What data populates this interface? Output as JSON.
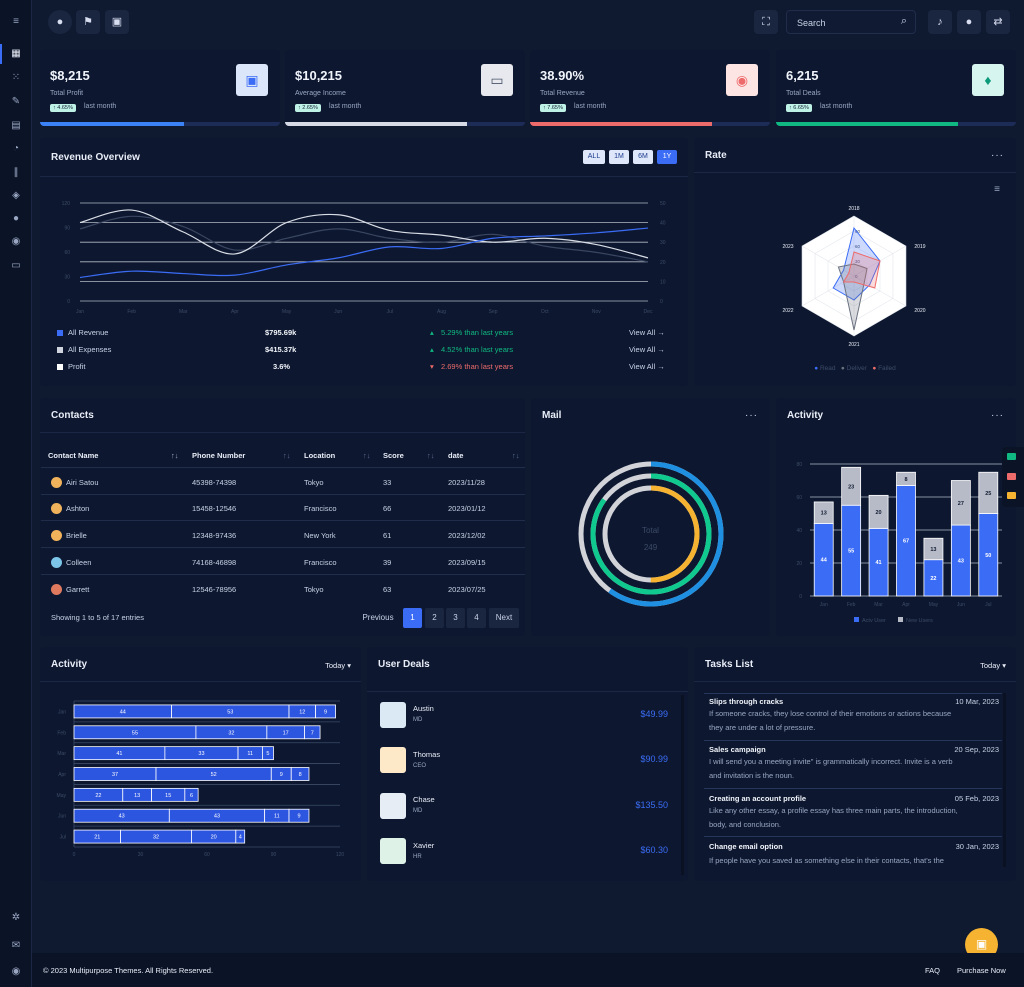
{
  "header": {
    "search_placeholder": "Search"
  },
  "stats": [
    {
      "value": "$8,215",
      "label": "Total Profit",
      "change": "↑ 4.65%",
      "period": "last month",
      "progress": 0.6,
      "bar_color": "#3b82f6"
    },
    {
      "value": "$10,215",
      "label": "Average Income",
      "change": "↑ 2.65%",
      "period": "last month",
      "progress": 0.76,
      "bar_color": "#d7dbe6"
    },
    {
      "value": "38.90%",
      "label": "Total Revenue",
      "change": "↑ 7.65%",
      "period": "last month",
      "progress": 0.76,
      "bar_color": "#ee6b6b"
    },
    {
      "value": "6,215",
      "label": "Total Deals",
      "change": "↑ 6.65%",
      "period": "last month",
      "progress": 0.76,
      "bar_color": "#10b981"
    }
  ],
  "revenue": {
    "title": "Revenue Overview",
    "ranges": [
      "ALL",
      "1M",
      "6M",
      "1Y"
    ],
    "active_range": "1Y",
    "legend": [
      {
        "name": "All Revenue",
        "amount": "$795.69k",
        "change": "5.29% than last years",
        "dir": "up",
        "link": "View All →",
        "color": "#3b6cf6"
      },
      {
        "name": "All Expenses",
        "amount": "$415.37k",
        "change": "4.52% than last years",
        "dir": "up",
        "link": "View All →",
        "color": "#cfd4df"
      },
      {
        "name": "Profit",
        "amount": "3.6%",
        "change": "2.69% than last years",
        "dir": "down",
        "link": "View All →",
        "color": "#ffffff"
      }
    ]
  },
  "rate": {
    "title": "Rate",
    "legend": [
      "Read",
      "Deliver",
      "Failed"
    ]
  },
  "contacts": {
    "title": "Contacts",
    "columns": [
      "Contact Name",
      "Phone Number",
      "Location",
      "Score",
      "date"
    ],
    "rows": [
      {
        "name": "Airi Satou",
        "phone": "45398-74398",
        "location": "Tokyo",
        "score": "33",
        "date": "2023/11/28"
      },
      {
        "name": "Ashton",
        "phone": "15458-12546",
        "location": "Francisco",
        "score": "66",
        "date": "2023/01/12"
      },
      {
        "name": "Brielle",
        "phone": "12348-97436",
        "location": "New York",
        "score": "61",
        "date": "2023/12/02"
      },
      {
        "name": "Colleen",
        "phone": "74168-46898",
        "location": "Francisco",
        "score": "39",
        "date": "2023/09/15"
      },
      {
        "name": "Garrett",
        "phone": "12546-78956",
        "location": "Tokyo",
        "score": "63",
        "date": "2023/07/25"
      }
    ],
    "footer": "Showing 1 to 5 of 17 entries",
    "pagination": [
      "Previous",
      "1",
      "2",
      "3",
      "4",
      "Next"
    ]
  },
  "mail": {
    "title": "Mail",
    "center_label": "Total",
    "center_value": "249"
  },
  "activity_top": {
    "title": "Activity"
  },
  "activity_bottom": {
    "title": "Activity",
    "filter": "Today ▾"
  },
  "deals": {
    "title": "User Deals",
    "items": [
      {
        "name": "Austin",
        "role": "MD",
        "amount": "$49.99"
      },
      {
        "name": "Thomas",
        "role": "CEO",
        "amount": "$90.99"
      },
      {
        "name": "Chase",
        "role": "MD",
        "amount": "$135.50"
      },
      {
        "name": "Xavier",
        "role": "HR",
        "amount": "$60.30"
      }
    ]
  },
  "tasks": {
    "title": "Tasks List",
    "filter": "Today ▾",
    "items": [
      {
        "title": "Slips through cracks",
        "date": "10 Mar, 2023",
        "body": "If someone cracks, they lose control of their emotions or actions because they are under a lot of pressure."
      },
      {
        "title": "Sales campaign",
        "date": "20 Sep, 2023",
        "body": "I will send you a meeting invite\" is grammatically incorrect. Invite is a verb and invitation is the noun."
      },
      {
        "title": "Creating an account profile",
        "date": "05 Feb, 2023",
        "body": "Like any other essay, a profile essay has three main parts, the introduction, body, and conclusion."
      },
      {
        "title": "Change email option",
        "date": "30 Jan, 2023",
        "body": "If people have you saved as something else in their contacts, that's the"
      }
    ]
  },
  "footer": {
    "copyright": "© 2023 Multipurpose Themes. All Rights Reserved.",
    "links": [
      "FAQ",
      "Purchase Now"
    ]
  },
  "chart_data": [
    {
      "id": "revenue-overview",
      "type": "line",
      "categories": [
        "Jan",
        "Feb",
        "Mar",
        "Apr",
        "May",
        "Jun",
        "Jul",
        "Aug",
        "Sep",
        "Oct",
        "Nov",
        "Dec"
      ],
      "series": [
        {
          "name": "All Revenue",
          "color": "#3b6cf6",
          "values": [
            30,
            38,
            35,
            33,
            46,
            55,
            69,
            67,
            80,
            83,
            87,
            93
          ]
        },
        {
          "name": "All Expenses",
          "color": "#d9dde6",
          "values": [
            100,
            116,
            88,
            60,
            100,
            110,
            90,
            84,
            75,
            80,
            72,
            55
          ]
        },
        {
          "name": "Profit",
          "color": "#3a4560",
          "values": [
            92,
            108,
            95,
            65,
            80,
            92,
            80,
            75,
            85,
            70,
            62,
            50
          ]
        }
      ],
      "ylim": [
        0,
        125
      ],
      "y_ticks": [
        "0",
        "30",
        "60",
        "90",
        "120"
      ],
      "y2_ticks": [
        "0",
        "10",
        "20",
        "30",
        "40",
        "50"
      ]
    },
    {
      "id": "rate-radar",
      "type": "radar",
      "categories": [
        "2018",
        "2019",
        "2020",
        "2021",
        "2022",
        "2023"
      ],
      "series": [
        {
          "name": "Read",
          "color": "#3b6cf6",
          "values": [
            80,
            50,
            30,
            40,
            40,
            20
          ]
        },
        {
          "name": "Deliver",
          "color": "#6b7280",
          "values": [
            20,
            25,
            20,
            90,
            20,
            30
          ]
        },
        {
          "name": "Failed",
          "color": "#ee6b6b",
          "values": [
            40,
            50,
            40,
            10,
            20,
            10
          ]
        }
      ],
      "rings": [
        "90",
        "60",
        "30",
        "0"
      ],
      "max": 100
    },
    {
      "id": "mail-donut",
      "type": "donut",
      "rings": [
        {
          "value": 60,
          "color": "#1e8fe1"
        },
        {
          "value": 85,
          "color": "#10c98f"
        },
        {
          "value": 50,
          "color": "#f5b331"
        }
      ],
      "track_color": "#d1d3d9"
    },
    {
      "id": "activity-stacked-column",
      "type": "bar",
      "stacked": true,
      "categories": [
        "Jan",
        "Feb",
        "Mar",
        "Apr",
        "May",
        "Jun",
        "Jul"
      ],
      "series": [
        {
          "name": "Actv User",
          "color": "#3b6cf6",
          "values": [
            44,
            55,
            41,
            67,
            22,
            43,
            50
          ]
        },
        {
          "name": "New Users",
          "color": "#b7bac7",
          "values": [
            13,
            23,
            20,
            8,
            13,
            27,
            25
          ]
        }
      ],
      "y_ticks": [
        "0",
        "20",
        "40",
        "60",
        "80"
      ],
      "ylim": [
        0,
        80
      ]
    },
    {
      "id": "activity-stacked-bar",
      "type": "bar",
      "orientation": "horizontal",
      "stacked": true,
      "categories": [
        "Jan",
        "Feb",
        "Mar",
        "Apr",
        "May",
        "Jun",
        "Jul"
      ],
      "series": [
        {
          "values": [
            44,
            55,
            41,
            37,
            22,
            43,
            21
          ]
        },
        {
          "values": [
            53,
            32,
            33,
            52,
            13,
            43,
            32
          ]
        },
        {
          "values": [
            12,
            17,
            11,
            9,
            15,
            11,
            20
          ]
        },
        {
          "values": [
            9,
            7,
            5,
            8,
            6,
            9,
            4
          ]
        }
      ],
      "x_ticks": [
        "0",
        "30",
        "60",
        "90",
        "120"
      ],
      "xlim": [
        0,
        120
      ],
      "color": "#2c55e0"
    }
  ]
}
